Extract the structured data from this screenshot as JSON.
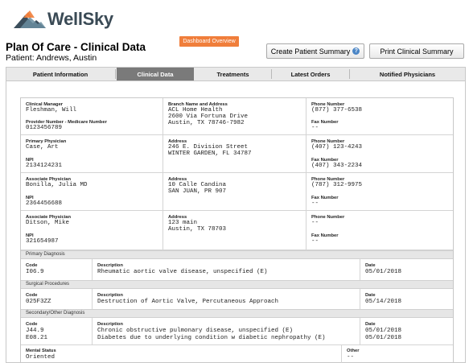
{
  "brand": {
    "name": "WellSky"
  },
  "header": {
    "title": "Plan Of Care - Clinical Data",
    "patient": "Patient: Andrews, Austin",
    "dashboard_button": "Dashboard Overview",
    "create_summary_button": "Create Patient Summary",
    "print_summary_button": "Print Clinical Summary"
  },
  "tabs": [
    {
      "label": "Patient Information",
      "active": false
    },
    {
      "label": "Clinical Data",
      "active": true
    },
    {
      "label": "Treatments",
      "active": false
    },
    {
      "label": "Latest Orders",
      "active": false
    },
    {
      "label": "Notified Physicians",
      "active": false
    }
  ],
  "clinical": {
    "manager": {
      "label": "Clinical Manager",
      "name": "Fleshman, Will",
      "provider_label": "Provider Number - Medicare Number",
      "provider": "0123456789",
      "branch_label": "Branch Name and Address",
      "branch_lines": [
        "ACL Home Health",
        "2600 Via Fortuna Drive",
        "Austin, TX 78746-7982"
      ],
      "phone_label": "Phone Number",
      "phone": "(877) 377-6538",
      "fax_label": "Fax Number",
      "fax": "--"
    },
    "primary": {
      "label": "Primary Physician",
      "name": "Case, Art",
      "npi_label": "NPI",
      "npi": "2134124231",
      "address_label": "Address",
      "address_lines": [
        "246 E. Division Street",
        "WINTER GARDEN, FL 34787"
      ],
      "phone_label": "Phone Number",
      "phone": "(407) 123-4243",
      "fax_label": "Fax Number",
      "fax": "(407) 343-2234"
    },
    "associate1": {
      "label": "Associate Physician",
      "name": "Bonilla, Julia MD",
      "npi_label": "NPI",
      "npi": "2364456688",
      "address_label": "Address",
      "address_lines": [
        "10 Calle Candina",
        "SAN JUAN, PR 907"
      ],
      "phone_label": "Phone Number",
      "phone": "(787) 312-9975",
      "fax_label": "Fax Number",
      "fax": "--"
    },
    "associate2": {
      "label": "Associate Physician",
      "name": "Ditson, Mike",
      "npi_label": "NPI",
      "npi": "321654987",
      "address_label": "Address",
      "address_lines": [
        "123 main",
        "Austin, TX 78703"
      ],
      "phone_label": "Phone Number",
      "phone": "--",
      "fax_label": "Fax Number",
      "fax": "--"
    },
    "primary_diagnosis": {
      "section": "Primary Diagnosis",
      "code_label": "Code",
      "desc_label": "Description",
      "date_label": "Date",
      "code": "I06.9",
      "desc": "Rheumatic aortic valve disease, unspecified (E)",
      "date": "05/01/2018"
    },
    "surgical": {
      "section": "Surgical Procedures",
      "code_label": "Code",
      "desc_label": "Description",
      "date_label": "Date",
      "code": "025F3ZZ",
      "desc": "Destruction of Aortic Valve, Percutaneous Approach",
      "date": "05/14/2018"
    },
    "secondary": {
      "section": "Secondary/Other Diagnosis",
      "code_label": "Code",
      "desc_label": "Description",
      "date_label": "Date",
      "rows": [
        {
          "code": "J44.9",
          "desc": "Chronic obstructive pulmonary disease, unspecified (E)",
          "date": "05/01/2018"
        },
        {
          "code": "E08.21",
          "desc": "Diabetes due to underlying condition w diabetic nephropathy (E)",
          "date": "05/01/2018"
        }
      ]
    },
    "mental": {
      "label": "Mental Status",
      "value": "Oriented",
      "other_label": "Other",
      "other": "--"
    }
  }
}
